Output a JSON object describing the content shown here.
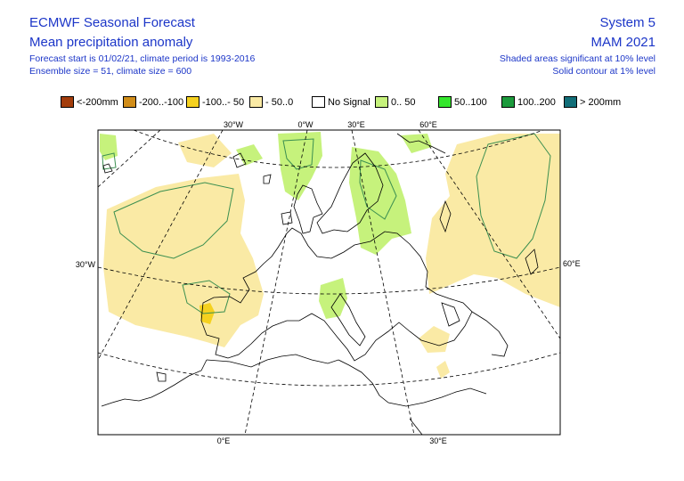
{
  "header": {
    "title": "ECMWF Seasonal Forecast",
    "subtitle": "Mean precipitation anomaly",
    "forecast_info": "Forecast start is 01/02/21, climate period is 1993-2016",
    "ensemble_info": "Ensemble size = 51, climate size = 600",
    "system": "System 5",
    "season": "MAM 2021",
    "shading_note": "Shaded areas significant at 10% level",
    "contour_note": "Solid contour at 1% level"
  },
  "legend": [
    {
      "label": "<-200mm",
      "color": "#a33d0c"
    },
    {
      "label": "-200..-100",
      "color": "#d18d19"
    },
    {
      "label": "-100..- 50",
      "color": "#f5d11f"
    },
    {
      "label": "- 50..0",
      "color": "#faeaa5"
    },
    {
      "label": "No Signal",
      "color": "#ffffff"
    },
    {
      "label": "0.. 50",
      "color": "#c6f27c"
    },
    {
      "label": "50..100",
      "color": "#35e62d"
    },
    {
      "label": "100..200",
      "color": "#1c9a3c"
    },
    {
      "label": "> 200mm",
      "color": "#126e78"
    }
  ],
  "map_labels": {
    "top": [
      "30°W",
      "0°W",
      "30°E",
      "60°E"
    ],
    "bottom": [
      "0°E",
      "30°E"
    ],
    "left": "30°W",
    "right": "60°E"
  },
  "colors": {
    "text_accent": "#1c36c8",
    "contour": "#3b8f50",
    "coast": "#000000",
    "graticule": "#000000"
  }
}
